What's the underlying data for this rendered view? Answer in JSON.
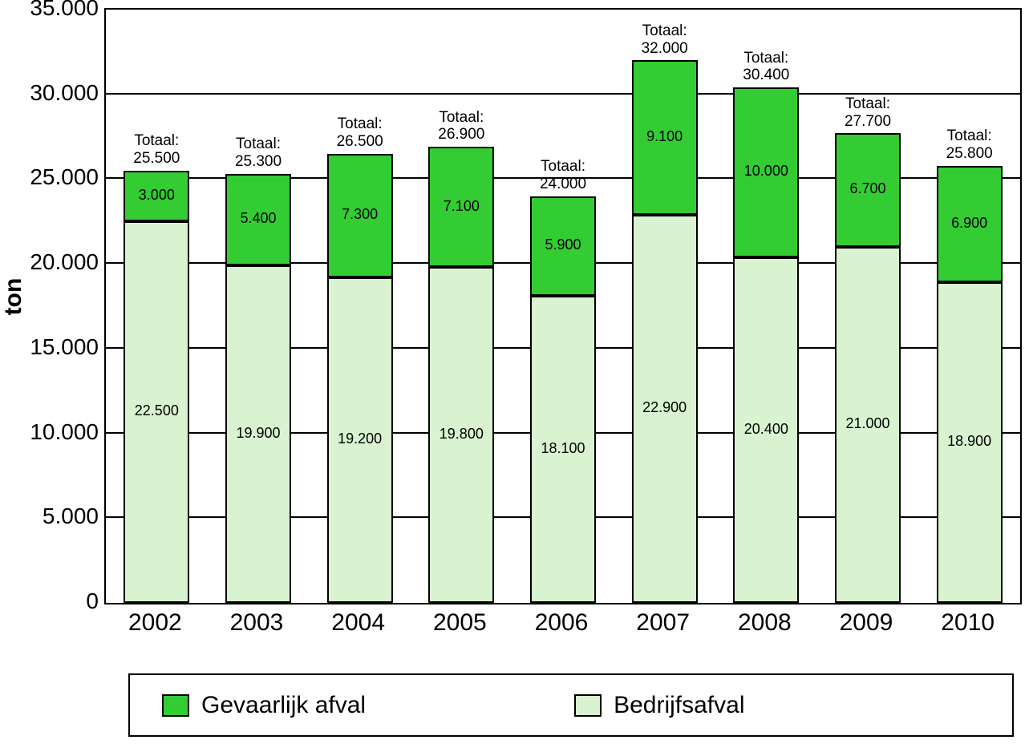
{
  "chart": {
    "type": "stacked-bar",
    "yaxis_title": "ton",
    "yaxis_title_fontsize": 30,
    "yaxis_title_fontweight": "bold",
    "ylim": [
      0,
      35000
    ],
    "ytick_step": 5000,
    "yticks": [
      0,
      5000,
      10000,
      15000,
      20000,
      25000,
      30000,
      35000
    ],
    "ytick_labels": [
      "0",
      "5.000",
      "10.000",
      "15.000",
      "20.000",
      "25.000",
      "30.000",
      "35.000"
    ],
    "tick_fontsize": 28,
    "background_color": "#ffffff",
    "grid_color": "#000000",
    "border_color": "#000000",
    "bar_border_color": "#000000",
    "bar_width_ratio": 0.65,
    "categories": [
      "2002",
      "2003",
      "2004",
      "2005",
      "2006",
      "2007",
      "2008",
      "2009",
      "2010"
    ],
    "xtick_fontsize": 30,
    "series": [
      {
        "name": "Bedrijfsafval",
        "color": "#d9f2d0",
        "values": [
          22500,
          19900,
          19200,
          19800,
          18100,
          22900,
          20400,
          21000,
          18900
        ],
        "value_labels": [
          "22.500",
          "19.900",
          "19.200",
          "19.800",
          "18.100",
          "22.900",
          "20.400",
          "21.000",
          "18.900"
        ]
      },
      {
        "name": "Gevaarlijk afval",
        "color": "#33cc33",
        "values": [
          3000,
          5400,
          7300,
          7100,
          5900,
          9100,
          10000,
          6700,
          6900
        ],
        "value_labels": [
          "3.000",
          "5.400",
          "7.300",
          "7.100",
          "5.900",
          "9.100",
          "10.000",
          "6.700",
          "6.900"
        ]
      }
    ],
    "total_prefix": "Totaal:",
    "totals": [
      25500,
      25300,
      26500,
      26900,
      24000,
      32000,
      30400,
      27700,
      25800
    ],
    "total_labels": [
      "25.500",
      "25.300",
      "26.500",
      "26.900",
      "24.000",
      "32.000",
      "30.400",
      "27.700",
      "25.800"
    ],
    "total_fontsize": 19,
    "value_fontsize": 18,
    "legend": {
      "items": [
        "Gevaarlijk afval",
        "Bedrijfsafval"
      ],
      "colors": [
        "#33cc33",
        "#d9f2d0"
      ],
      "fontsize": 30,
      "border_color": "#000000",
      "background_color": "#ffffff"
    }
  }
}
